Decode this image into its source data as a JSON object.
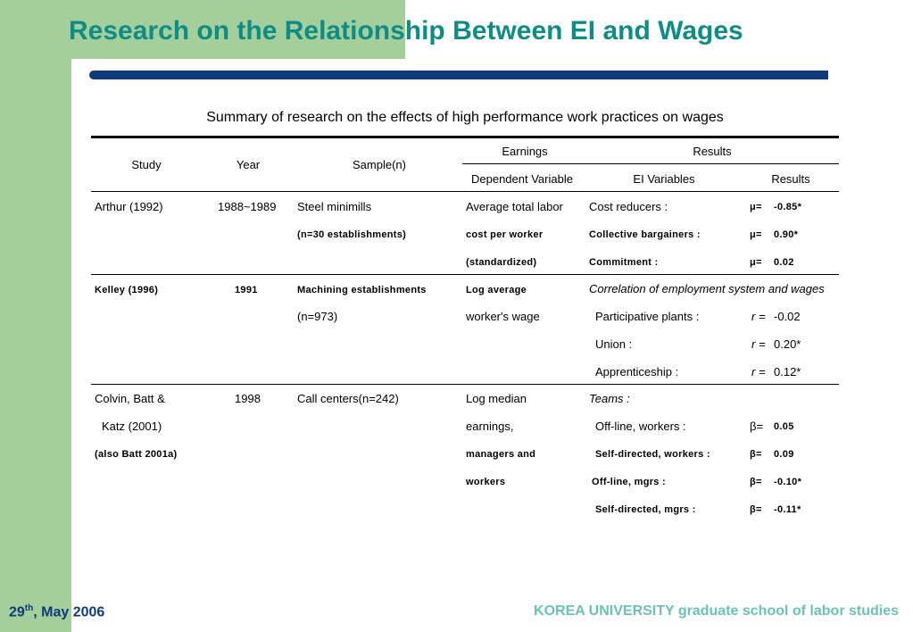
{
  "title": "Research on the Relationship Between EI and Wages",
  "caption": "Summary of research on the effects of high performance work practices on wages",
  "header": {
    "study": "Study",
    "year": "Year",
    "sample": "Sample(n)",
    "earnings": "Earnings",
    "results_group": "Results",
    "dependent_variable": "Dependent Variable",
    "ei_variables": "EI Variables",
    "results": "Results"
  },
  "rows": {
    "arthur": {
      "study": "Arthur (1992)",
      "year": "1988~1989",
      "sample1": "Steel minimills",
      "sample2": "(n=30 establishments)",
      "dep1": "Average total labor",
      "dep2": "cost per worker",
      "dep3": "(standardized)",
      "ei1": "Cost reducers :",
      "ei2": "Collective bargainers :",
      "ei3": "Commitment :",
      "sym": "μ=",
      "res1": "-0.85*",
      "res2": "0.90*",
      "res3": "0.02"
    },
    "kelley": {
      "study": "Kelley (1996)",
      "year": "1991",
      "sample1": "Machining establishments",
      "sample2": "(n=973)",
      "dep1": "Log average",
      "dep2": "worker's wage",
      "ei_head": "Correlation of employment system and wages",
      "ei1": "Participative plants :",
      "ei2": "Union :",
      "ei3": "Apprenticeship :",
      "sym": "r =",
      "res1": "-0.02",
      "res2": "0.20*",
      "res3": "0.12*"
    },
    "colvin": {
      "study1": "Colvin, Batt &",
      "study2": "Katz (2001)",
      "study3": "(also Batt 2001a)",
      "year": "1998",
      "sample1": "Call centers(n=242)",
      "dep1": "Log median",
      "dep2": "earnings,",
      "dep3": "managers and",
      "dep4": "workers",
      "ei_head": "Teams :",
      "ei1": "Off-line, workers :",
      "ei2": "Self-directed, workers :",
      "ei3": "Off-line, mgrs :",
      "ei4": "Self-directed, mgrs :",
      "sym": "β=",
      "res1": "0.05",
      "res2": "0.09",
      "res3": "-0.10*",
      "res4": "-0.11*"
    }
  },
  "footer": {
    "date_day": "29",
    "date_suffix": "th",
    "date_rest": ", May 2006",
    "org": "KOREA UNIVERSITY graduate school of labor studies"
  }
}
